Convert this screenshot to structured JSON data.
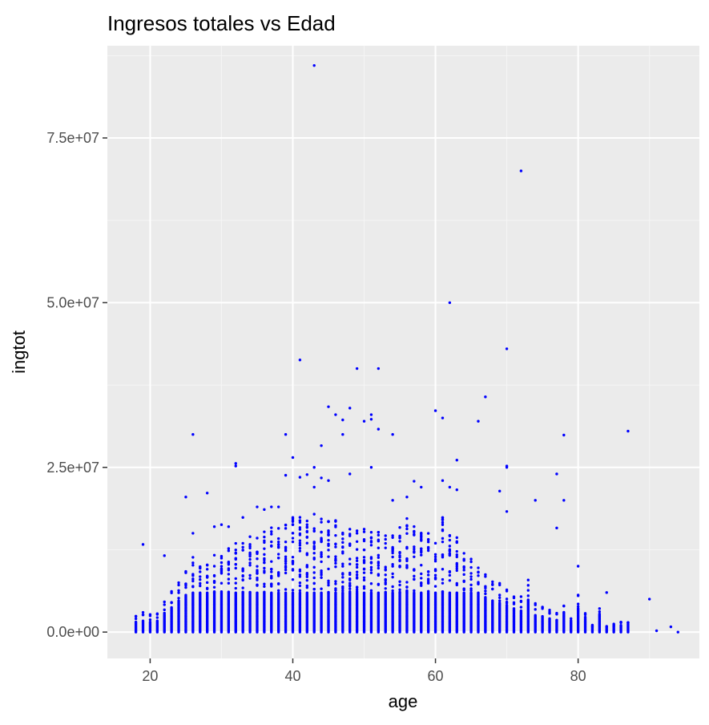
{
  "chart_data": {
    "type": "scatter",
    "title": "Ingresos totales vs Edad",
    "xlabel": "age",
    "ylabel": "ingtot",
    "xlim": [
      14,
      97
    ],
    "ylim": [
      -4000000,
      89000000
    ],
    "x_ticks": [
      20,
      40,
      60,
      80
    ],
    "x_tick_labels": [
      "20",
      "40",
      "60",
      "80"
    ],
    "y_ticks": [
      0,
      25000000,
      50000000,
      75000000
    ],
    "y_tick_labels": [
      "0.0e+00",
      "2.5e+07",
      "5.0e+07",
      "7.5e+07"
    ],
    "grid": true,
    "legend": "none",
    "colors": {
      "panel_background": "#ebebeb",
      "grid_major": "#ffffff",
      "grid_minor": "#f5f5f5",
      "points": "#0000ff",
      "axis_text": "#4d4d4d",
      "axis_title": "#000000"
    },
    "outliers": [
      {
        "x": 19,
        "y": 13300000
      },
      {
        "x": 22,
        "y": 11600000
      },
      {
        "x": 25,
        "y": 20500000
      },
      {
        "x": 26,
        "y": 30000000
      },
      {
        "x": 26,
        "y": 15000000
      },
      {
        "x": 28,
        "y": 21100000
      },
      {
        "x": 29,
        "y": 16000000
      },
      {
        "x": 30,
        "y": 16300000
      },
      {
        "x": 31,
        "y": 16000000
      },
      {
        "x": 32,
        "y": 25600000
      },
      {
        "x": 32,
        "y": 25200000
      },
      {
        "x": 33,
        "y": 17400000
      },
      {
        "x": 35,
        "y": 19000000
      },
      {
        "x": 36,
        "y": 18600000
      },
      {
        "x": 37,
        "y": 19000000
      },
      {
        "x": 38,
        "y": 19000000
      },
      {
        "x": 39,
        "y": 30000000
      },
      {
        "x": 39,
        "y": 23800000
      },
      {
        "x": 40,
        "y": 26500000
      },
      {
        "x": 41,
        "y": 41300000
      },
      {
        "x": 41,
        "y": 23500000
      },
      {
        "x": 42,
        "y": 23900000
      },
      {
        "x": 43,
        "y": 86000000
      },
      {
        "x": 43,
        "y": 25000000
      },
      {
        "x": 43,
        "y": 22000000
      },
      {
        "x": 44,
        "y": 28300000
      },
      {
        "x": 44,
        "y": 23400000
      },
      {
        "x": 45,
        "y": 34200000
      },
      {
        "x": 45,
        "y": 23000000
      },
      {
        "x": 46,
        "y": 33000000
      },
      {
        "x": 47,
        "y": 32200000
      },
      {
        "x": 47,
        "y": 30000000
      },
      {
        "x": 48,
        "y": 34000000
      },
      {
        "x": 48,
        "y": 24000000
      },
      {
        "x": 49,
        "y": 40000000
      },
      {
        "x": 50,
        "y": 32000000
      },
      {
        "x": 51,
        "y": 33000000
      },
      {
        "x": 51,
        "y": 32300000
      },
      {
        "x": 51,
        "y": 25000000
      },
      {
        "x": 52,
        "y": 40000000
      },
      {
        "x": 52,
        "y": 30800000
      },
      {
        "x": 54,
        "y": 30000000
      },
      {
        "x": 54,
        "y": 20000000
      },
      {
        "x": 56,
        "y": 20500000
      },
      {
        "x": 57,
        "y": 22900000
      },
      {
        "x": 58,
        "y": 22000000
      },
      {
        "x": 60,
        "y": 33600000
      },
      {
        "x": 61,
        "y": 32500000
      },
      {
        "x": 61,
        "y": 23000000
      },
      {
        "x": 62,
        "y": 50000000
      },
      {
        "x": 62,
        "y": 22000000
      },
      {
        "x": 63,
        "y": 26100000
      },
      {
        "x": 63,
        "y": 21600000
      },
      {
        "x": 66,
        "y": 32000000
      },
      {
        "x": 67,
        "y": 35700000
      },
      {
        "x": 69,
        "y": 21400000
      },
      {
        "x": 70,
        "y": 43000000
      },
      {
        "x": 70,
        "y": 25000000
      },
      {
        "x": 70,
        "y": 25200000
      },
      {
        "x": 70,
        "y": 18300000
      },
      {
        "x": 72,
        "y": 70000000
      },
      {
        "x": 74,
        "y": 20000000
      },
      {
        "x": 77,
        "y": 24000000
      },
      {
        "x": 77,
        "y": 15800000
      },
      {
        "x": 78,
        "y": 29900000
      },
      {
        "x": 78,
        "y": 20000000
      },
      {
        "x": 80,
        "y": 10000000
      },
      {
        "x": 84,
        "y": 6000000
      },
      {
        "x": 87,
        "y": 30500000
      },
      {
        "x": 90,
        "y": 5000000
      },
      {
        "x": 91,
        "y": 200000
      },
      {
        "x": 93,
        "y": 800000
      },
      {
        "x": 94,
        "y": 0
      }
    ],
    "age_max_income_bulk": [
      {
        "age": 18,
        "max": 2800000
      },
      {
        "age": 19,
        "max": 3000000
      },
      {
        "age": 20,
        "max": 2800000
      },
      {
        "age": 21,
        "max": 3000000
      },
      {
        "age": 22,
        "max": 5000000
      },
      {
        "age": 23,
        "max": 6500000
      },
      {
        "age": 24,
        "max": 8000000
      },
      {
        "age": 25,
        "max": 9500000
      },
      {
        "age": 26,
        "max": 11500000
      },
      {
        "age": 27,
        "max": 10500000
      },
      {
        "age": 28,
        "max": 12000000
      },
      {
        "age": 29,
        "max": 12000000
      },
      {
        "age": 30,
        "max": 12500000
      },
      {
        "age": 31,
        "max": 13000000
      },
      {
        "age": 32,
        "max": 13500000
      },
      {
        "age": 33,
        "max": 14000000
      },
      {
        "age": 34,
        "max": 14500000
      },
      {
        "age": 35,
        "max": 15000000
      },
      {
        "age": 36,
        "max": 15500000
      },
      {
        "age": 37,
        "max": 16000000
      },
      {
        "age": 38,
        "max": 16000000
      },
      {
        "age": 39,
        "max": 17000000
      },
      {
        "age": 40,
        "max": 17500000
      },
      {
        "age": 41,
        "max": 18000000
      },
      {
        "age": 42,
        "max": 18000000
      },
      {
        "age": 43,
        "max": 18000000
      },
      {
        "age": 44,
        "max": 17500000
      },
      {
        "age": 45,
        "max": 17000000
      },
      {
        "age": 46,
        "max": 17000000
      },
      {
        "age": 47,
        "max": 16500000
      },
      {
        "age": 48,
        "max": 16500000
      },
      {
        "age": 49,
        "max": 16000000
      },
      {
        "age": 50,
        "max": 16000000
      },
      {
        "age": 51,
        "max": 15500000
      },
      {
        "age": 52,
        "max": 15500000
      },
      {
        "age": 53,
        "max": 15000000
      },
      {
        "age": 54,
        "max": 15000000
      },
      {
        "age": 55,
        "max": 16500000
      },
      {
        "age": 56,
        "max": 17500000
      },
      {
        "age": 57,
        "max": 17000000
      },
      {
        "age": 58,
        "max": 16000000
      },
      {
        "age": 59,
        "max": 15000000
      },
      {
        "age": 60,
        "max": 14000000
      },
      {
        "age": 61,
        "max": 17500000
      },
      {
        "age": 62,
        "max": 15000000
      },
      {
        "age": 63,
        "max": 14500000
      },
      {
        "age": 64,
        "max": 12500000
      },
      {
        "age": 65,
        "max": 11500000
      },
      {
        "age": 66,
        "max": 10000000
      },
      {
        "age": 67,
        "max": 9000000
      },
      {
        "age": 68,
        "max": 8000000
      },
      {
        "age": 69,
        "max": 7500000
      },
      {
        "age": 70,
        "max": 7000000
      },
      {
        "age": 71,
        "max": 6000000
      },
      {
        "age": 72,
        "max": 5500000
      },
      {
        "age": 73,
        "max": 8000000
      },
      {
        "age": 74,
        "max": 4500000
      },
      {
        "age": 75,
        "max": 4000000
      },
      {
        "age": 76,
        "max": 3500000
      },
      {
        "age": 77,
        "max": 3000000
      },
      {
        "age": 78,
        "max": 5000000
      },
      {
        "age": 79,
        "max": 2500000
      },
      {
        "age": 80,
        "max": 6000000
      },
      {
        "age": 81,
        "max": 3500000
      },
      {
        "age": 82,
        "max": 1200000
      },
      {
        "age": 83,
        "max": 4500000
      },
      {
        "age": 84,
        "max": 1000000
      },
      {
        "age": 85,
        "max": 1500000
      },
      {
        "age": 86,
        "max": 1800000
      },
      {
        "age": 87,
        "max": 2000000
      }
    ]
  }
}
